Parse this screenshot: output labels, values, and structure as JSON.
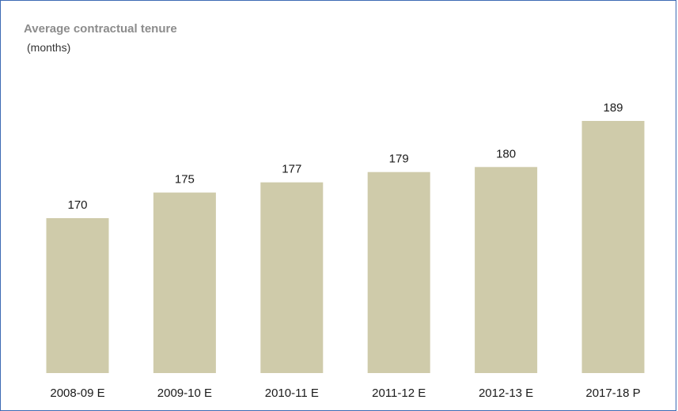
{
  "chart_data": {
    "type": "bar",
    "title": "Average contractual tenure",
    "subtitle": "(months)",
    "categories": [
      "2008-09 E",
      "2009-10 E",
      "2010-11 E",
      "2011-12 E",
      "2012-13 E",
      "2017-18 P"
    ],
    "values": [
      170,
      175,
      177,
      179,
      180,
      189
    ],
    "data_labels": [
      "170",
      "175",
      "177",
      "179",
      "180",
      "189"
    ],
    "xlabel": "",
    "ylabel": "",
    "grid": false,
    "legend": "none",
    "bar_color": "#cfcbaa"
  }
}
